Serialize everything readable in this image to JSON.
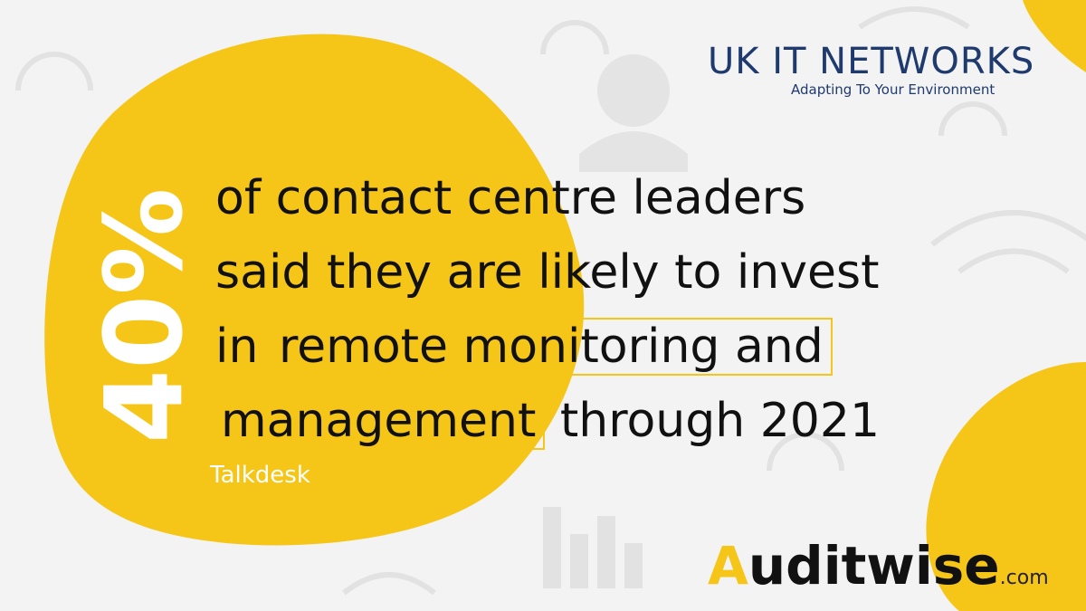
{
  "colors": {
    "accent_yellow": "#f5c518",
    "navy": "#1f3a6e",
    "background": "#f3f3f3"
  },
  "brand": {
    "name": "UK IT NETWORKS",
    "tagline": "Adapting To Your Environment"
  },
  "stat": {
    "percent": "40%"
  },
  "headline": {
    "line1": "of contact centre leaders",
    "line2": "said they are likely to invest",
    "line3_prefix": "in",
    "line3_highlight": "remote monitoring and",
    "line4_highlight": "management",
    "line4_suffix": "through 2021"
  },
  "source": "Talkdesk",
  "footer_brand": {
    "first_letter": "A",
    "rest": "uditwise",
    "domain": ".com"
  },
  "icons": [
    "headset-icon",
    "wifi-icon",
    "bar-chart-icon",
    "agent-icon"
  ]
}
